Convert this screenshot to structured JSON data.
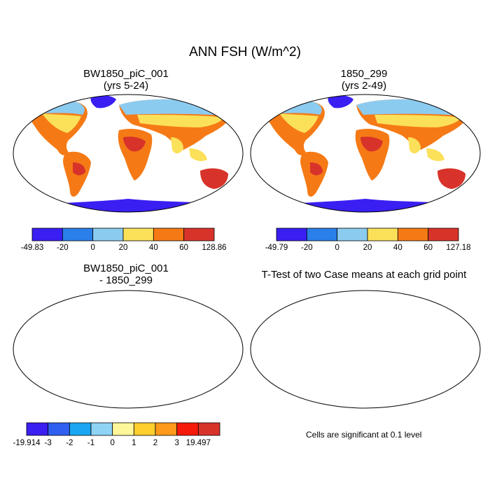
{
  "title": "ANN FSH (W/m^2)",
  "panels": {
    "top_left": {
      "title_line1": "BW1850_piC_001",
      "title_line2": "(yrs 5-24)"
    },
    "top_right": {
      "title_line1": "1850_299",
      "title_line2": "(yrs 2-49)"
    },
    "bottom_left": {
      "title_line1": "BW1850_piC_001",
      "title_line2": "- 1850_299"
    },
    "bottom_right": {
      "title_line1": "T-Test of two Case means at each grid point"
    }
  },
  "colorbars": {
    "top_left": {
      "colors": [
        "#3a1ff2",
        "#2a7fe8",
        "#8ccbf0",
        "#fbe05a",
        "#f57a16",
        "#d8332a"
      ],
      "labels": [
        "-49.83",
        "-20",
        "0",
        "20",
        "40",
        "60",
        "128.86"
      ]
    },
    "top_right": {
      "colors": [
        "#3a1ff2",
        "#2a7fe8",
        "#8ccbf0",
        "#fbe05a",
        "#f57a16",
        "#d8332a"
      ],
      "labels": [
        "-49.79",
        "-20",
        "0",
        "20",
        "40",
        "60",
        "127.18"
      ]
    },
    "bottom_left": {
      "colors": [
        "#3a1ff2",
        "#2f5ff0",
        "#1aa6f2",
        "#8fd3f5",
        "#fff79a",
        "#ffcf2e",
        "#ff9a1c",
        "#f51a0a",
        "#d8332a"
      ],
      "labels": [
        "-19.914",
        "-3",
        "-2",
        "-1",
        "0",
        "1",
        "2",
        "3",
        "19.497"
      ]
    }
  },
  "note": "Cells are significant at 0.1 level"
}
